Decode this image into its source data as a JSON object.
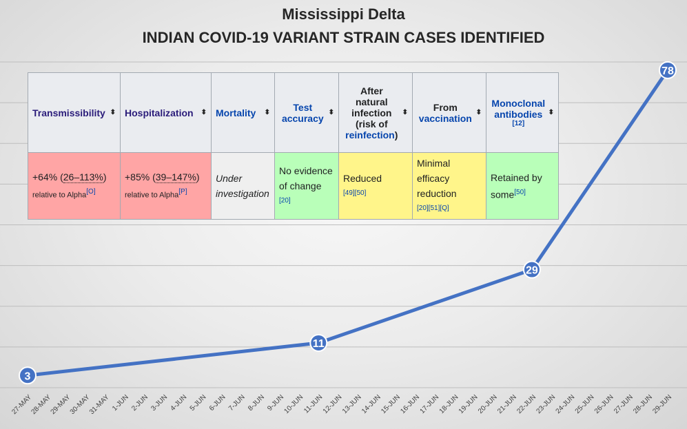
{
  "title": "Mississippi Delta",
  "subtitle": "INDIAN COVID-19 VARIANT STRAIN CASES IDENTIFIED",
  "table": {
    "headers": [
      {
        "label": "Transmissibility"
      },
      {
        "label": "Hospitalization"
      },
      {
        "label": "Mortality"
      },
      {
        "label": "Test accuracy"
      },
      {
        "label_pre": "After natural infection (risk of",
        "label_link": "reinfection",
        "label_post": ")"
      },
      {
        "label_pre": "From",
        "label_link": "vaccination"
      },
      {
        "label": "Monoclonal antibodies",
        "ref": "[12]"
      }
    ],
    "cells": [
      {
        "main": "+64% (",
        "range": "26–113%",
        "close": ")",
        "sub": "relative to Alpha",
        "ref": "[O]"
      },
      {
        "main": "+85% (",
        "range": "39–147%",
        "close": ")",
        "sub": "relative to Alpha",
        "ref": "[P]"
      },
      {
        "text": "Under investigation"
      },
      {
        "text": "No evidence of change",
        "ref": "[20]"
      },
      {
        "text": "Reduced",
        "ref": "[49][50]"
      },
      {
        "text": "Minimal efficacy reduction",
        "ref": "[20][51][Q]"
      },
      {
        "text": "Retained by some",
        "ref": "[50]"
      }
    ]
  },
  "chart_data": {
    "type": "line",
    "categories": [
      "27-MAY",
      "28-MAY",
      "29-MAY",
      "30-MAY",
      "31-MAY",
      "1-JUN",
      "2-JUN",
      "3-JUN",
      "4-JUN",
      "5-JUN",
      "6-JUN",
      "7-JUN",
      "8-JUN",
      "9-JUN",
      "10-JUN",
      "11-JUN",
      "12-JUN",
      "13-JUN",
      "14-JUN",
      "15-JUN",
      "16-JUN",
      "17-JUN",
      "18-JUN",
      "19-JUN",
      "20-JUN",
      "21-JUN",
      "22-JUN",
      "23-JUN",
      "24-JUN",
      "25-JUN",
      "26-JUN",
      "27-JUN",
      "28-JUN",
      "29-JUN"
    ],
    "points": [
      {
        "x": "27-MAY",
        "y": 3
      },
      {
        "x": "11-JUN",
        "y": 11
      },
      {
        "x": "22-JUN",
        "y": 29
      },
      {
        "x": "29-JUN",
        "y": 78
      }
    ],
    "ylim": [
      0,
      80
    ],
    "grid": true,
    "line_color": "#4472c4",
    "marker_color": "#4472c4",
    "label_color": "#ffffff"
  }
}
